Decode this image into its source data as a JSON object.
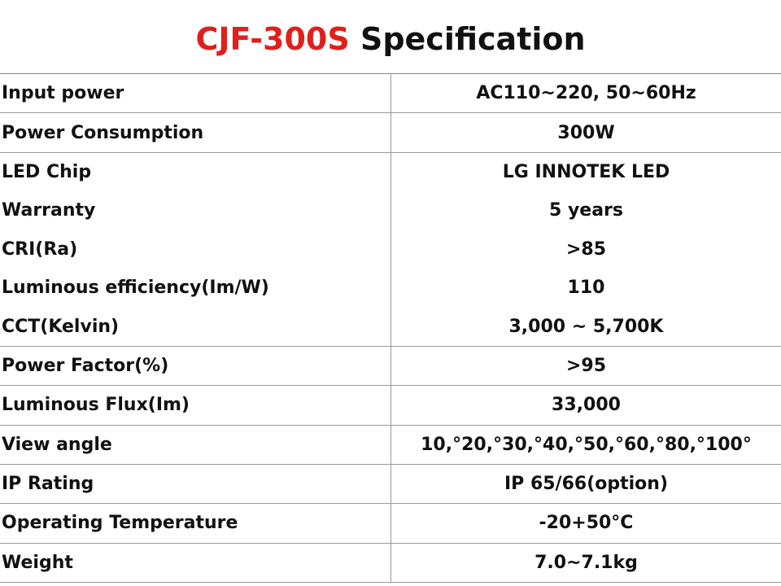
{
  "header": {
    "title_model": "CJF-300S",
    "title_text": "Specification"
  },
  "table": {
    "rows": [
      [
        "Input power",
        "AC110~220, 50~60Hz"
      ],
      [
        "Power Consumption",
        "300W"
      ],
      [
        "LED Chip",
        "LG INNOTEK LED"
      ],
      [
        "Warranty",
        "5 years"
      ],
      [
        "CRI(Ra)",
        ">85"
      ],
      [
        "Luminous efficiency(Im/W)",
        "110"
      ],
      [
        "CCT(Kelvin)",
        "3,000 ~ 5,700K"
      ],
      [
        "Power Factor(%)",
        ">95"
      ],
      [
        "Luminous Flux(Im)",
        "33,000"
      ],
      [
        "View angle",
        "10,°20,°30,°40,°50,°60,°80,°100°"
      ],
      [
        "IP Rating",
        "IP 65/66(option)"
      ],
      [
        "Operating Temperature",
        "-20+50°C"
      ],
      [
        "Weight",
        "7.0~7.1kg"
      ]
    ]
  }
}
